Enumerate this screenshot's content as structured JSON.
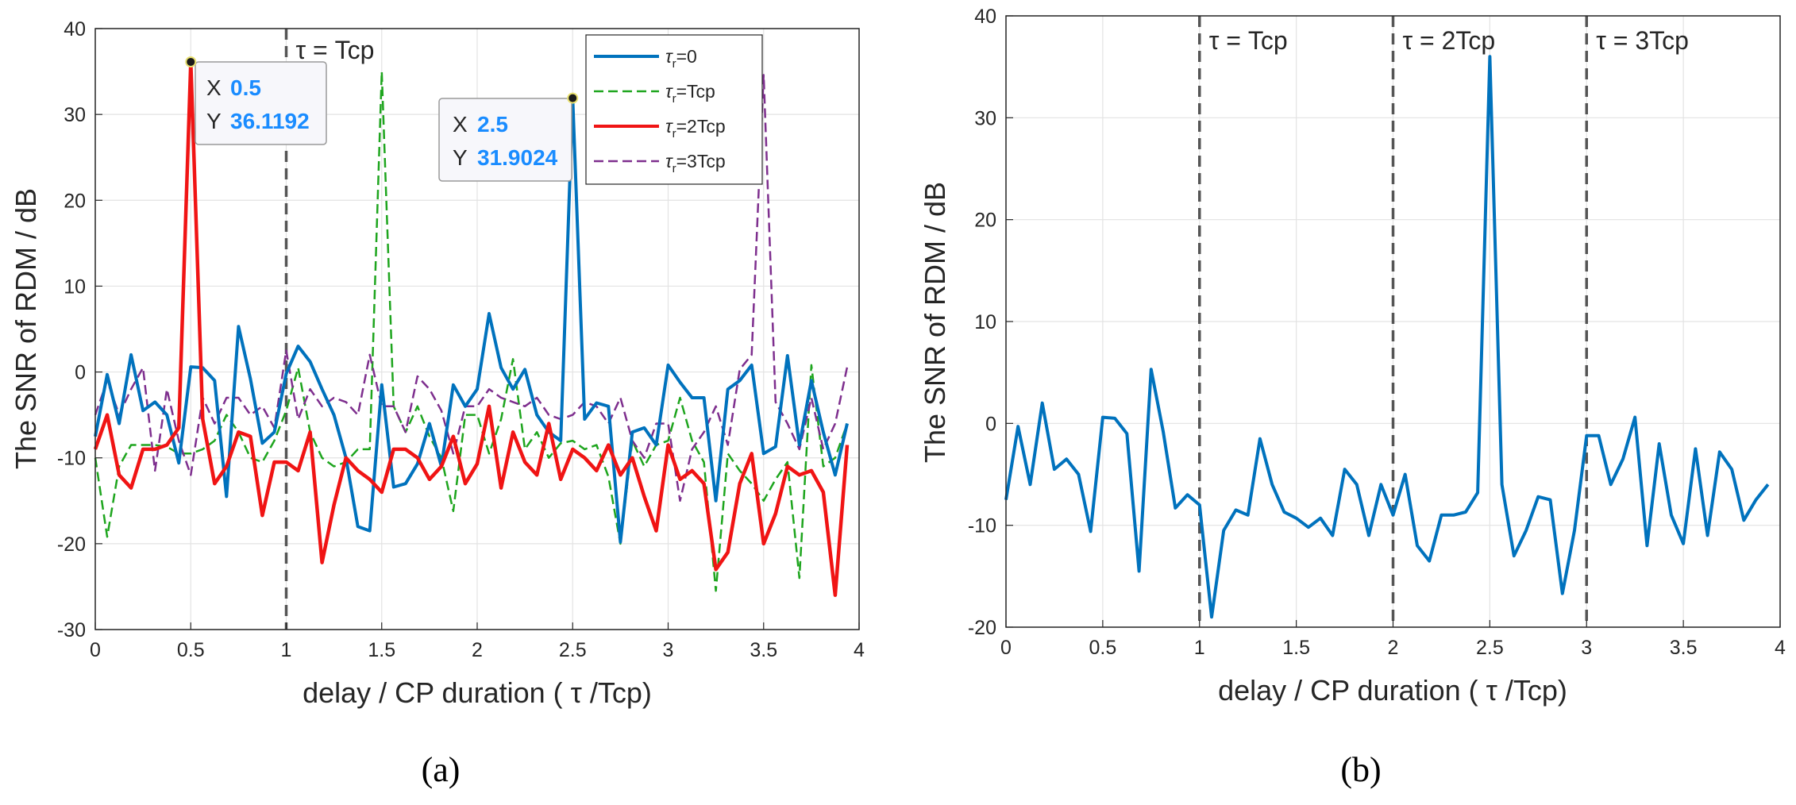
{
  "colors": {
    "blue": "#0072BD",
    "green": "#1ea51e",
    "red": "#f01414",
    "purple": "#7e2f8e",
    "tip_value": "#1a8cff",
    "vline": "#555555"
  },
  "chart_data": [
    {
      "panel": "(a)",
      "type": "line",
      "xlabel": "delay / CP duration ( τ /Tcp)",
      "ylabel": "The SNR of RDM  / dB",
      "xlim": [
        0,
        4
      ],
      "ylim": [
        -30,
        40
      ],
      "xticks": [
        "0",
        "0.5",
        "1",
        "1.5",
        "2",
        "2.5",
        "3",
        "3.5",
        "4"
      ],
      "yticks": [
        "-30",
        "-20",
        "-10",
        "0",
        "10",
        "20",
        "30",
        "40"
      ],
      "grid": true,
      "legend_position": "top-right",
      "vlines": [
        {
          "x": 1,
          "label": "τ = Tcp"
        }
      ],
      "datatips": [
        {
          "x_label": "X",
          "x_value": "0.5",
          "y_label": "Y",
          "y_value": "36.1192",
          "x": 0.5,
          "y": 36.1192
        },
        {
          "x_label": "X",
          "x_value": "2.5",
          "y_label": "Y",
          "y_value": "31.9024",
          "x": 2.5,
          "y": 31.9024
        }
      ],
      "x": [
        0,
        0.0625,
        0.125,
        0.1875,
        0.25,
        0.3125,
        0.375,
        0.4375,
        0.5,
        0.5625,
        0.625,
        0.6875,
        0.75,
        0.8125,
        0.875,
        0.9375,
        1,
        1.0625,
        1.125,
        1.1875,
        1.25,
        1.3125,
        1.375,
        1.4375,
        1.5,
        1.5625,
        1.625,
        1.6875,
        1.75,
        1.8125,
        1.875,
        1.9375,
        2,
        2.0625,
        2.125,
        2.1875,
        2.25,
        2.3125,
        2.375,
        2.4375,
        2.5,
        2.5625,
        2.625,
        2.6875,
        2.75,
        2.8125,
        2.875,
        2.9375,
        3,
        3.0625,
        3.125,
        3.1875,
        3.25,
        3.3125,
        3.375,
        3.4375,
        3.5,
        3.5625,
        3.625,
        3.6875,
        3.75,
        3.8125,
        3.875,
        3.9375
      ],
      "series": [
        {
          "name_main": "τ",
          "name_sub": "r",
          "name_tail": "=0",
          "color_key": "blue",
          "dash": "solid",
          "values": [
            -7.5,
            -0.3,
            -6,
            2,
            -4.5,
            -3.5,
            -5,
            -10.6,
            0.6,
            0.5,
            -1,
            -14.5,
            5.3,
            -0.8,
            -8.3,
            -7,
            -0.2,
            3,
            1.2,
            -2,
            -5,
            -10,
            -18,
            -18.5,
            -1.5,
            -13.4,
            -13,
            -10.7,
            -6,
            -11,
            -1.5,
            -4,
            -2,
            6.8,
            0.5,
            -2,
            0.3,
            -5,
            -7,
            -8,
            31.9,
            -5.5,
            -3.6,
            -4,
            -19.8,
            -7,
            -6.5,
            -8.5,
            0.8,
            -1.2,
            -3,
            -3,
            -15,
            -2,
            -1,
            0.8,
            -9.5,
            -8.7,
            1.9,
            -8.5,
            -1,
            -7,
            -12,
            -6
          ]
        },
        {
          "name_main": "τ",
          "name_sub": "r",
          "name_tail": "=Tcp",
          "color_key": "green",
          "dash": "dashed",
          "values": [
            -10,
            -19.2,
            -11,
            -8.5,
            -8.5,
            -8.5,
            -8.7,
            -9.5,
            -9.5,
            -9,
            -8,
            -5,
            -7,
            -10,
            -10.5,
            -8,
            -4.5,
            0.5,
            -7,
            -10,
            -11,
            -10.5,
            -9,
            -9,
            35,
            -4,
            -7,
            -4,
            -7.5,
            -10,
            -16.2,
            -5,
            -5,
            -9.5,
            -5.5,
            1.5,
            -9,
            -7,
            -10,
            -8.3,
            -8,
            -9,
            -8.5,
            -12.2,
            -20,
            -8,
            -11,
            -8.5,
            -8,
            -3,
            -8,
            -10.5,
            -25.5,
            -9.5,
            -11.5,
            -13,
            -15,
            -12.5,
            -10.5,
            -24,
            0.8,
            -11,
            -10,
            -6
          ]
        },
        {
          "name_main": "τ",
          "name_sub": "r",
          "name_tail": "=2Tcp",
          "color_key": "red",
          "dash": "solid",
          "values": [
            -9,
            -5,
            -12,
            -13.5,
            -9,
            -9,
            -8.5,
            -6.5,
            36.1,
            -5.5,
            -13,
            -11,
            -7,
            -7.5,
            -16.7,
            -10.5,
            -10.5,
            -11.5,
            -7,
            -22.2,
            -15.5,
            -10,
            -11.5,
            -12.5,
            -14,
            -9,
            -9,
            -10,
            -12.5,
            -11,
            -7.5,
            -13,
            -10.7,
            -4,
            -13.5,
            -7,
            -10.5,
            -12,
            -6,
            -12.5,
            -9,
            -10,
            -11.5,
            -8.5,
            -12,
            -10,
            -14.5,
            -18.5,
            -8.5,
            -12.5,
            -11.5,
            -13,
            -23,
            -21,
            -13,
            -9.5,
            -20,
            -16.5,
            -11,
            -12,
            -11.5,
            -14,
            -26,
            -8.5
          ]
        },
        {
          "name_main": "τ",
          "name_sub": "r",
          "name_tail": "=3Tcp",
          "color_key": "purple",
          "dash": "dashed",
          "values": [
            -5,
            -1,
            -5,
            -2,
            0.5,
            -11.5,
            -2,
            -8,
            -12,
            -3,
            -6,
            -3,
            -3,
            -5,
            -4,
            -6.5,
            2.5,
            -5.5,
            -2,
            -4,
            -3,
            -3.5,
            -5,
            2,
            -4,
            -4,
            -7,
            -0.5,
            -2,
            -4.5,
            -9.5,
            -4,
            -4,
            -2,
            -3,
            -3.5,
            -4,
            -3,
            -5,
            -5.5,
            -5,
            -3.5,
            -4,
            -6,
            -3,
            -8,
            -10,
            -6,
            -6,
            -15,
            -9,
            -7,
            -4,
            -8.5,
            0.3,
            2,
            34.6,
            -3.5,
            -6,
            -9,
            -3,
            -9,
            -6,
            0.6
          ]
        }
      ]
    },
    {
      "panel": "(b)",
      "type": "line",
      "xlabel": "delay / CP duration ( τ /Tcp)",
      "ylabel": "The SNR of RDM  / dB",
      "xlim": [
        0,
        4
      ],
      "ylim": [
        -20,
        40
      ],
      "xticks": [
        "0",
        "0.5",
        "1",
        "1.5",
        "2",
        "2.5",
        "3",
        "3.5",
        "4"
      ],
      "yticks": [
        "-20",
        "-10",
        "0",
        "10",
        "20",
        "30",
        "40"
      ],
      "grid": true,
      "vlines": [
        {
          "x": 1,
          "label": "τ = Tcp"
        },
        {
          "x": 2,
          "label": "τ = 2Tcp"
        },
        {
          "x": 3,
          "label": "τ = 3Tcp"
        }
      ],
      "x": [
        0,
        0.0625,
        0.125,
        0.1875,
        0.25,
        0.3125,
        0.375,
        0.4375,
        0.5,
        0.5625,
        0.625,
        0.6875,
        0.75,
        0.8125,
        0.875,
        0.9375,
        1,
        1.0625,
        1.125,
        1.1875,
        1.25,
        1.3125,
        1.375,
        1.4375,
        1.5,
        1.5625,
        1.625,
        1.6875,
        1.75,
        1.8125,
        1.875,
        1.9375,
        2,
        2.0625,
        2.125,
        2.1875,
        2.25,
        2.3125,
        2.375,
        2.4375,
        2.5,
        2.5625,
        2.625,
        2.6875,
        2.75,
        2.8125,
        2.875,
        2.9375,
        3,
        3.0625,
        3.125,
        3.1875,
        3.25,
        3.3125,
        3.375,
        3.4375,
        3.5,
        3.5625,
        3.625,
        3.6875,
        3.75,
        3.8125,
        3.875,
        3.9375
      ],
      "series": [
        {
          "color_key": "blue",
          "dash": "solid",
          "values": [
            -7.5,
            -0.3,
            -6,
            2,
            -4.5,
            -3.5,
            -5,
            -10.6,
            0.6,
            0.5,
            -1,
            -14.5,
            5.3,
            -0.8,
            -8.3,
            -7,
            -8,
            -19,
            -10.5,
            -8.5,
            -9,
            -1.5,
            -6,
            -8.7,
            -9.3,
            -10.2,
            -9.3,
            -11,
            -4.5,
            -6,
            -11,
            -6,
            -9,
            -5,
            -12,
            -13.5,
            -9,
            -9,
            -8.7,
            -6.8,
            36,
            -6,
            -13,
            -10.5,
            -7.2,
            -7.5,
            -16.7,
            -10.5,
            -1.2,
            -1.2,
            -6,
            -3.5,
            0.6,
            -12,
            -2,
            -9,
            -11.8,
            -2.5,
            -11,
            -2.8,
            -4.5,
            -9.5,
            -7.5,
            -6
          ]
        }
      ]
    }
  ],
  "panel_labels": {
    "a": "(a)",
    "b": "(b)"
  }
}
